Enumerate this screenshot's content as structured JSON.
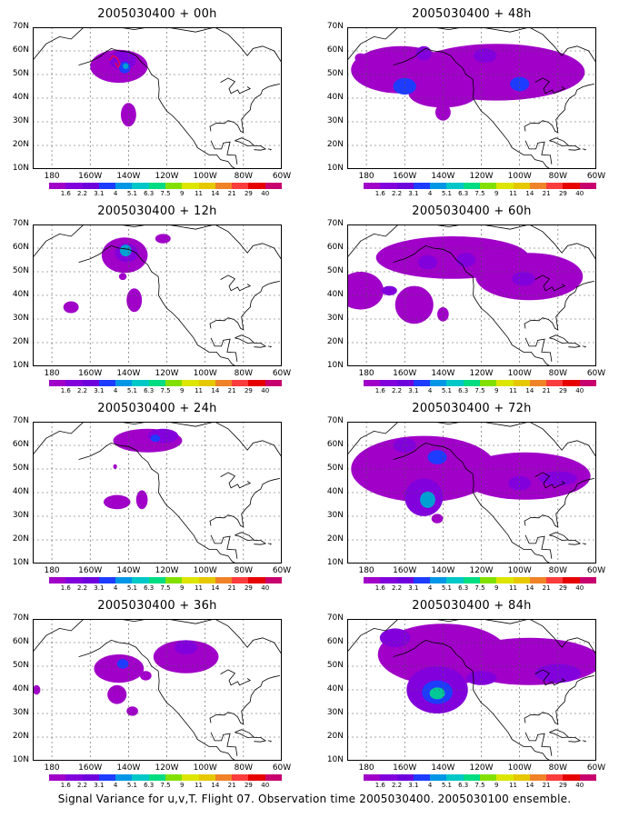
{
  "footer": "Signal Variance for u,v,T. Flight 07. Observation time 2005030400. 2005030100 ensemble.",
  "panels": [
    {
      "title": "2005030400 + 00h",
      "col": 0,
      "row": 0
    },
    {
      "title": "2005030400 + 48h",
      "col": 1,
      "row": 0
    },
    {
      "title": "2005030400 + 12h",
      "col": 0,
      "row": 1
    },
    {
      "title": "2005030400 + 60h",
      "col": 1,
      "row": 1
    },
    {
      "title": "2005030400 + 24h",
      "col": 0,
      "row": 2
    },
    {
      "title": "2005030400 + 72h",
      "col": 1,
      "row": 2
    },
    {
      "title": "2005030400 + 36h",
      "col": 0,
      "row": 3
    },
    {
      "title": "2005030400 + 84h",
      "col": 1,
      "row": 3
    }
  ],
  "axes": {
    "lat_labels": [
      "70N",
      "60N",
      "50N",
      "40N",
      "30N",
      "20N",
      "10N"
    ],
    "lon_labels": [
      "180",
      "160W",
      "140W",
      "120W",
      "100W",
      "80W",
      "60W"
    ]
  },
  "colorbar": {
    "labels": [
      "1.6",
      "2.2",
      "3.1",
      "4",
      "5.1",
      "6.3",
      "7.5",
      "9",
      "11",
      "14",
      "21",
      "29",
      "40"
    ],
    "colors": [
      "#a000c8",
      "#8200dc",
      "#6e00dc",
      "#1e3cff",
      "#0096e6",
      "#00c8c8",
      "#00dc82",
      "#82e000",
      "#dce600",
      "#e6c800",
      "#f08228",
      "#fa3c3c",
      "#e60000",
      "#c8006e"
    ]
  },
  "colors": {
    "light": "#a000c8",
    "mid": "#8200dc",
    "blue": "#1e3cff",
    "cyan": "#00a0d2",
    "green": "#00c896"
  }
}
